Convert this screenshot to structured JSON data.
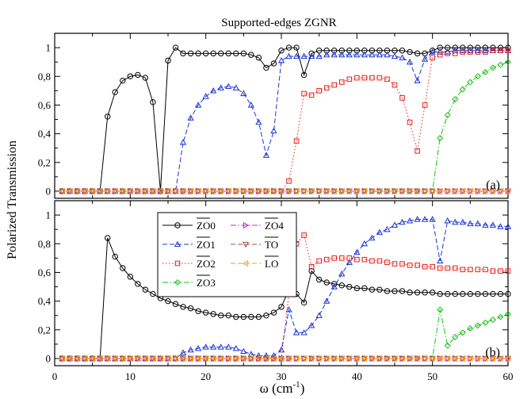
{
  "figure": {
    "title": "Supported-edges ZGNR",
    "ylabel": "Polarized Transmission",
    "xlabel_main": "ω (cm",
    "xlabel_sup": "-1",
    "xlabel_close": ")"
  },
  "chart_data": [
    {
      "type": "line",
      "panel_label": "(a)",
      "xlim": [
        0,
        60
      ],
      "ylim": [
        -0.05,
        1.1
      ],
      "x_ticks": [
        0,
        10,
        20,
        30,
        40,
        50,
        60
      ],
      "y_ticks": [
        "0",
        "0,2",
        "0,4",
        "0,6",
        "0,8",
        "1"
      ],
      "y_tick_values": [
        0,
        0.2,
        0.4,
        0.6,
        0.8,
        1
      ],
      "grid": false,
      "legend": "none",
      "x": [
        1,
        2,
        3,
        4,
        5,
        6,
        7,
        8,
        9,
        10,
        11,
        12,
        13,
        14,
        15,
        16,
        17,
        18,
        19,
        20,
        21,
        22,
        23,
        24,
        25,
        26,
        27,
        28,
        29,
        30,
        31,
        32,
        33,
        34,
        35,
        36,
        37,
        38,
        39,
        40,
        41,
        42,
        43,
        44,
        45,
        46,
        47,
        48,
        49,
        50,
        51,
        52,
        53,
        54,
        55,
        56,
        57,
        58,
        59,
        60
      ],
      "series": [
        {
          "name": "ZO0",
          "color": "#000000",
          "marker": "circle",
          "dash": "solid",
          "values": [
            0,
            0,
            0,
            0,
            0,
            0,
            0.52,
            0.69,
            0.77,
            0.8,
            0.81,
            0.79,
            0.62,
            0,
            0.91,
            1.0,
            0.96,
            0.96,
            0.96,
            0.96,
            0.96,
            0.96,
            0.96,
            0.96,
            0.96,
            0.95,
            0.93,
            0.86,
            0.89,
            0.98,
            1.0,
            1.0,
            0.81,
            0.96,
            0.98,
            0.98,
            0.98,
            0.98,
            0.98,
            0.98,
            0.98,
            0.98,
            0.98,
            0.98,
            0.98,
            0.98,
            0.97,
            0.96,
            0.96,
            0.98,
            1.0,
            1.0,
            1.0,
            1.0,
            1.0,
            1.0,
            1.0,
            1.0,
            1.0,
            1.0
          ]
        },
        {
          "name": "ZO1",
          "color": "#1a33d6",
          "marker": "triangle-up",
          "dash": "dashed",
          "values": [
            0,
            0,
            0,
            0,
            0,
            0,
            0,
            0,
            0,
            0,
            0,
            0,
            0,
            0,
            0,
            0,
            0.34,
            0.51,
            0.6,
            0.66,
            0.7,
            0.72,
            0.73,
            0.72,
            0.68,
            0.6,
            0.48,
            0.25,
            0.42,
            0.91,
            0.94,
            0.94,
            0.94,
            0.94,
            0.94,
            0.95,
            0.95,
            0.95,
            0.95,
            0.95,
            0.95,
            0.95,
            0.95,
            0.95,
            0.94,
            0.93,
            0.9,
            0.77,
            0.92,
            0.97,
            0.97,
            0.97,
            0.98,
            0.98,
            0.98,
            0.98,
            0.98,
            0.98,
            0.98,
            0.98
          ]
        },
        {
          "name": "ZO2",
          "color": "#e8201c",
          "marker": "square",
          "dash": "dotted",
          "values": [
            0,
            0,
            0,
            0,
            0,
            0,
            0,
            0,
            0,
            0,
            0,
            0,
            0,
            0,
            0,
            0,
            0,
            0,
            0,
            0,
            0,
            0,
            0,
            0,
            0,
            0,
            0,
            0,
            0,
            0,
            0.07,
            0.35,
            0.68,
            0.67,
            0.7,
            0.72,
            0.74,
            0.76,
            0.78,
            0.79,
            0.79,
            0.79,
            0.79,
            0.78,
            0.74,
            0.65,
            0.48,
            0.28,
            0.6,
            0.93,
            0.95,
            0.96,
            0.96,
            0.97,
            0.97,
            0.97,
            0.97,
            0.98,
            0.98,
            0.98
          ]
        },
        {
          "name": "ZO3",
          "color": "#17c117",
          "marker": "diamond",
          "dash": "dashdot",
          "values": [
            0,
            0,
            0,
            0,
            0,
            0,
            0,
            0,
            0,
            0,
            0,
            0,
            0,
            0,
            0,
            0,
            0,
            0,
            0,
            0,
            0,
            0,
            0,
            0,
            0,
            0,
            0,
            0,
            0,
            0,
            0,
            0,
            0,
            0,
            0,
            0,
            0,
            0,
            0,
            0,
            0,
            0,
            0,
            0,
            0,
            0,
            0,
            0,
            0,
            0,
            0.37,
            0.53,
            0.64,
            0.71,
            0.76,
            0.8,
            0.83,
            0.86,
            0.88,
            0.9
          ]
        },
        {
          "name": "ZO4",
          "color": "#d61fd6",
          "marker": "triangle-right",
          "dash": "dashdot",
          "values": [
            0,
            0,
            0,
            0,
            0,
            0,
            0,
            0,
            0,
            0,
            0,
            0,
            0,
            0,
            0,
            0,
            0,
            0,
            0,
            0,
            0,
            0,
            0,
            0,
            0,
            0,
            0,
            0,
            0,
            0,
            0,
            0,
            0,
            0,
            0,
            0,
            0,
            0,
            0,
            0,
            0,
            0,
            0,
            0,
            0,
            0,
            0,
            0,
            0,
            0,
            0,
            0,
            0,
            0,
            0,
            0,
            0,
            0,
            0,
            0
          ]
        },
        {
          "name": "TO",
          "color": "#a05050",
          "marker": "triangle-down",
          "dash": "dashed",
          "values": [
            0,
            0,
            0,
            0,
            0,
            0,
            0,
            0,
            0,
            0,
            0,
            0,
            0,
            0,
            0,
            0,
            0,
            0,
            0,
            0,
            0,
            0,
            0,
            0,
            0,
            0,
            0,
            0,
            0,
            0,
            0,
            0,
            0,
            0,
            0,
            0,
            0,
            0,
            0,
            0,
            0,
            0,
            0,
            0,
            0,
            0,
            0,
            0,
            0,
            0,
            0,
            0,
            0,
            0,
            0,
            0,
            0,
            0,
            0,
            0
          ]
        },
        {
          "name": "LO",
          "color": "#f5a020",
          "marker": "triangle-left",
          "dash": "dashed",
          "values": [
            0,
            0,
            0,
            0,
            0,
            0,
            0,
            0,
            0,
            0,
            0,
            0,
            0,
            0,
            0,
            0,
            0,
            0,
            0,
            0,
            0,
            0,
            0,
            0,
            0,
            0,
            0,
            0,
            0,
            0,
            0,
            0,
            0,
            0,
            0,
            0,
            0,
            0,
            0,
            0,
            0,
            0,
            0,
            0,
            0,
            0,
            0,
            0,
            0,
            0,
            0,
            0,
            0,
            0,
            0,
            0,
            0,
            0,
            0,
            0
          ]
        }
      ]
    },
    {
      "type": "line",
      "panel_label": "(b)",
      "xlim": [
        0,
        60
      ],
      "ylim": [
        -0.05,
        1.1
      ],
      "x_ticks": [
        0,
        10,
        20,
        30,
        40,
        50,
        60
      ],
      "y_ticks": [
        "0",
        "0,2",
        "0,4",
        "0,6",
        "0,8",
        "1"
      ],
      "y_tick_values": [
        0,
        0.2,
        0.4,
        0.6,
        0.8,
        1
      ],
      "grid": false,
      "legend": "top-left",
      "x": [
        1,
        2,
        3,
        4,
        5,
        6,
        7,
        8,
        9,
        10,
        11,
        12,
        13,
        14,
        15,
        16,
        17,
        18,
        19,
        20,
        21,
        22,
        23,
        24,
        25,
        26,
        27,
        28,
        29,
        30,
        31,
        32,
        33,
        34,
        35,
        36,
        37,
        38,
        39,
        40,
        41,
        42,
        43,
        44,
        45,
        46,
        47,
        48,
        49,
        50,
        51,
        52,
        53,
        54,
        55,
        56,
        57,
        58,
        59,
        60
      ],
      "series": [
        {
          "name": "ZO0",
          "legend_label": "ZO0",
          "color": "#000000",
          "marker": "circle",
          "dash": "solid",
          "values": [
            0,
            0,
            0,
            0,
            0,
            0,
            0.84,
            0.71,
            0.63,
            0.57,
            0.52,
            0.48,
            0.45,
            0.42,
            0.4,
            0.38,
            0.36,
            0.35,
            0.33,
            0.32,
            0.31,
            0.3,
            0.3,
            0.29,
            0.29,
            0.29,
            0.29,
            0.3,
            0.32,
            0.36,
            0.48,
            0.45,
            0.39,
            0.61,
            0.55,
            0.53,
            0.52,
            0.51,
            0.5,
            0.49,
            0.49,
            0.48,
            0.48,
            0.47,
            0.47,
            0.47,
            0.46,
            0.46,
            0.46,
            0.46,
            0.45,
            0.45,
            0.45,
            0.45,
            0.45,
            0.45,
            0.45,
            0.45,
            0.45,
            0.45
          ]
        },
        {
          "name": "ZO1",
          "legend_label": "ZO1",
          "color": "#1a33d6",
          "marker": "triangle-up",
          "dash": "dashed",
          "values": [
            0,
            0,
            0,
            0,
            0,
            0,
            0,
            0,
            0,
            0,
            0,
            0,
            0,
            0,
            0,
            0,
            0.04,
            0.06,
            0.07,
            0.08,
            0.08,
            0.08,
            0.08,
            0.07,
            0.05,
            0.03,
            0.02,
            0.02,
            0.02,
            0.06,
            0.34,
            0.18,
            0.18,
            0.23,
            0.3,
            0.4,
            0.5,
            0.59,
            0.67,
            0.74,
            0.8,
            0.84,
            0.88,
            0.9,
            0.93,
            0.95,
            0.96,
            0.97,
            0.97,
            0.97,
            0.68,
            0.96,
            0.95,
            0.95,
            0.94,
            0.94,
            0.93,
            0.93,
            0.92,
            0.92
          ]
        },
        {
          "name": "ZO2",
          "legend_label": "ZO2",
          "color": "#e8201c",
          "marker": "square",
          "dash": "dotted",
          "values": [
            0,
            0,
            0,
            0,
            0,
            0,
            0,
            0,
            0,
            0,
            0,
            0,
            0,
            0,
            0,
            0,
            0,
            0,
            0,
            0,
            0,
            0,
            0,
            0,
            0,
            0,
            0,
            0,
            0,
            0,
            0.45,
            0.8,
            0.86,
            0.64,
            0.68,
            0.69,
            0.7,
            0.7,
            0.7,
            0.69,
            0.69,
            0.68,
            0.68,
            0.67,
            0.66,
            0.66,
            0.65,
            0.65,
            0.64,
            0.64,
            0.63,
            0.63,
            0.63,
            0.62,
            0.62,
            0.62,
            0.62,
            0.61,
            0.61,
            0.61
          ]
        },
        {
          "name": "ZO3",
          "legend_label": "ZO3",
          "color": "#17c117",
          "marker": "diamond",
          "dash": "dashdot",
          "values": [
            0,
            0,
            0,
            0,
            0,
            0,
            0,
            0,
            0,
            0,
            0,
            0,
            0,
            0,
            0,
            0,
            0,
            0,
            0,
            0,
            0,
            0,
            0,
            0,
            0,
            0,
            0,
            0,
            0,
            0,
            0,
            0,
            0,
            0,
            0,
            0,
            0,
            0,
            0,
            0,
            0,
            0,
            0,
            0,
            0,
            0,
            0,
            0,
            0,
            0,
            0.34,
            0.09,
            0.15,
            0.18,
            0.21,
            0.23,
            0.25,
            0.27,
            0.29,
            0.31
          ]
        },
        {
          "name": "ZO4",
          "legend_label": "ZO4",
          "color": "#d61fd6",
          "marker": "triangle-right",
          "dash": "dashdot",
          "values": [
            0,
            0,
            0,
            0,
            0,
            0,
            0,
            0,
            0,
            0,
            0,
            0,
            0,
            0,
            0,
            0,
            0,
            0,
            0,
            0,
            0,
            0,
            0,
            0,
            0,
            0,
            0,
            0,
            0,
            0,
            0,
            0,
            0,
            0,
            0,
            0,
            0,
            0,
            0,
            0,
            0,
            0,
            0,
            0,
            0,
            0,
            0,
            0,
            0,
            0,
            0,
            0,
            0,
            0,
            0,
            0,
            0,
            0,
            0,
            0
          ]
        },
        {
          "name": "TO",
          "legend_label": "TO",
          "color": "#a05050",
          "marker": "triangle-down",
          "dash": "dashed",
          "values": [
            0,
            0,
            0,
            0,
            0,
            0,
            0,
            0,
            0,
            0,
            0,
            0,
            0,
            0,
            0,
            0,
            0,
            0,
            0,
            0,
            0,
            0,
            0,
            0,
            0,
            0,
            0,
            0,
            0,
            0,
            0,
            0,
            0,
            0,
            0,
            0,
            0,
            0,
            0,
            0,
            0,
            0,
            0,
            0,
            0,
            0,
            0,
            0,
            0,
            0,
            0,
            0,
            0,
            0,
            0,
            0,
            0,
            0,
            0,
            0
          ]
        },
        {
          "name": "LO",
          "legend_label": "LO",
          "color": "#f5a020",
          "marker": "triangle-left",
          "dash": "dashed",
          "values": [
            0,
            0,
            0,
            0,
            0,
            0,
            0,
            0,
            0,
            0,
            0,
            0,
            0,
            0,
            0,
            0,
            0,
            0,
            0,
            0,
            0,
            0,
            0,
            0,
            0,
            0,
            0,
            0,
            0,
            0,
            0,
            0,
            0,
            0,
            0,
            0,
            0,
            0,
            0,
            0,
            0,
            0,
            0,
            0,
            0,
            0,
            0,
            0,
            0,
            0,
            0,
            0,
            0,
            0,
            0,
            0,
            0,
            0,
            0,
            0
          ]
        }
      ]
    }
  ]
}
